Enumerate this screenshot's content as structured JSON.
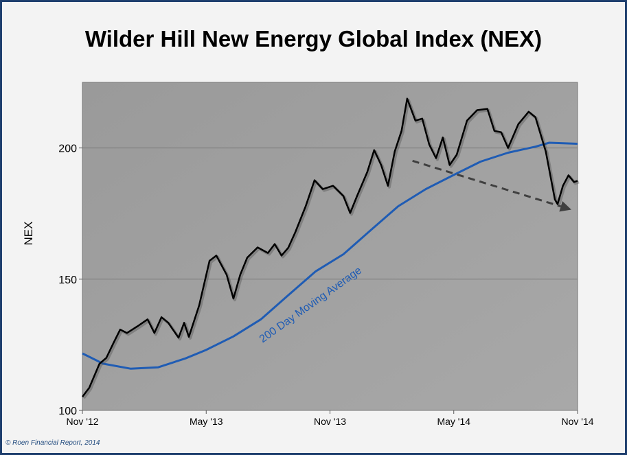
{
  "chart_data": {
    "type": "line",
    "title": "Wilder Hill New Energy Global Index (NEX)",
    "xlabel": "",
    "ylabel": "NEX",
    "x_unit": "months since Nov '12",
    "xlim": [
      0,
      24
    ],
    "ylim": [
      100,
      225
    ],
    "yticks": [
      100,
      150,
      200
    ],
    "xticks": [
      {
        "x": 0,
        "label": "Nov '12"
      },
      {
        "x": 6,
        "label": "May '13"
      },
      {
        "x": 12,
        "label": "Nov '13"
      },
      {
        "x": 18,
        "label": "May '14"
      },
      {
        "x": 24,
        "label": "Nov '14"
      }
    ],
    "grid": true,
    "series": [
      {
        "name": "NEX",
        "color": "#000000",
        "points": [
          [
            0,
            105.2
          ],
          [
            0.33,
            108.6
          ],
          [
            0.83,
            117.8
          ],
          [
            1.16,
            120
          ],
          [
            1.5,
            125.6
          ],
          [
            1.83,
            130.8
          ],
          [
            2.16,
            129.5
          ],
          [
            2.66,
            132
          ],
          [
            3.16,
            134.7
          ],
          [
            3.49,
            129.5
          ],
          [
            3.83,
            135.5
          ],
          [
            4.16,
            133.4
          ],
          [
            4.66,
            127.7
          ],
          [
            4.93,
            133.4
          ],
          [
            5.16,
            128
          ],
          [
            5.66,
            140
          ],
          [
            6.16,
            157
          ],
          [
            6.49,
            159
          ],
          [
            6.99,
            151.7
          ],
          [
            7.32,
            142.6
          ],
          [
            7.65,
            151.7
          ],
          [
            7.99,
            158.2
          ],
          [
            8.49,
            162.1
          ],
          [
            8.99,
            160
          ],
          [
            9.32,
            163.4
          ],
          [
            9.65,
            159
          ],
          [
            9.98,
            162
          ],
          [
            10.32,
            167.9
          ],
          [
            10.82,
            177.8
          ],
          [
            11.25,
            187.7
          ],
          [
            11.65,
            184.3
          ],
          [
            12.15,
            185.6
          ],
          [
            12.65,
            181.7
          ],
          [
            12.98,
            175.2
          ],
          [
            13.31,
            181.7
          ],
          [
            13.81,
            190.9
          ],
          [
            14.14,
            199.2
          ],
          [
            14.48,
            193.5
          ],
          [
            14.81,
            185.6
          ],
          [
            15.14,
            198.7
          ],
          [
            15.47,
            206.5
          ],
          [
            15.74,
            218.8
          ],
          [
            16.14,
            210.4
          ],
          [
            16.47,
            211.2
          ],
          [
            16.81,
            201.3
          ],
          [
            17.14,
            196.1
          ],
          [
            17.47,
            204
          ],
          [
            17.8,
            193.5
          ],
          [
            18.14,
            197.4
          ],
          [
            18.64,
            210.4
          ],
          [
            19.13,
            214.4
          ],
          [
            19.63,
            214.9
          ],
          [
            19.97,
            206.5
          ],
          [
            20.3,
            206
          ],
          [
            20.63,
            200
          ],
          [
            21.13,
            209.1
          ],
          [
            21.63,
            213.8
          ],
          [
            21.96,
            211.7
          ],
          [
            22.46,
            198.7
          ],
          [
            22.9,
            180.4
          ],
          [
            23.03,
            178.6
          ],
          [
            23.29,
            185.6
          ],
          [
            23.56,
            189.6
          ],
          [
            23.83,
            187
          ],
          [
            24,
            187.5
          ]
        ]
      },
      {
        "name": "200 Day Moving Average",
        "color": "#1f5cb4",
        "points": [
          [
            0,
            121.7
          ],
          [
            1,
            117.8
          ],
          [
            2.33,
            115.9
          ],
          [
            3.66,
            116.4
          ],
          [
            4.99,
            119.8
          ],
          [
            5.99,
            123
          ],
          [
            7.32,
            128.2
          ],
          [
            8.65,
            134.7
          ],
          [
            9.98,
            143.9
          ],
          [
            11.31,
            153
          ],
          [
            12.65,
            159.5
          ],
          [
            13.98,
            168.7
          ],
          [
            15.31,
            177.8
          ],
          [
            16.64,
            184.3
          ],
          [
            17.97,
            189.6
          ],
          [
            19.3,
            194.8
          ],
          [
            20.63,
            198.2
          ],
          [
            21.96,
            200.5
          ],
          [
            22.63,
            202
          ],
          [
            24,
            201.6
          ]
        ]
      }
    ],
    "annotations": [
      {
        "type": "text",
        "text": "200 Day Moving Average",
        "series": "200 Day Moving Average"
      },
      {
        "type": "dashed-arrow",
        "from": [
          16.0,
          195.1
        ],
        "to": [
          23.7,
          176.5
        ],
        "color": "#404040"
      }
    ],
    "legend": "none"
  },
  "footer": "© Roen Financial Report, 2014"
}
